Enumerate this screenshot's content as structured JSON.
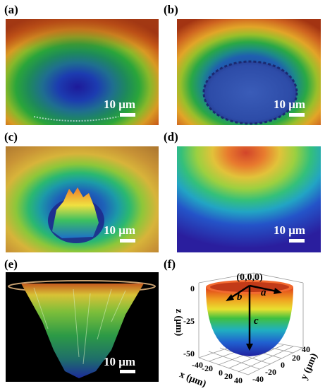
{
  "panels": [
    {
      "id": "a",
      "label": "(a)",
      "scale": "10 μm"
    },
    {
      "id": "b",
      "label": "(b)",
      "scale": "10 μm"
    },
    {
      "id": "c",
      "label": "(c)",
      "scale": "10 μm"
    },
    {
      "id": "d",
      "label": "(d)",
      "scale": "10 μm"
    },
    {
      "id": "e",
      "label": "(e)",
      "scale": "10 μm"
    },
    {
      "id": "f",
      "label": "(f)"
    }
  ],
  "plot3d": {
    "origin_label": "(0,0,0)",
    "var_a": "a",
    "var_b": "b",
    "var_c": "c",
    "z_axis_label": "z (μm)",
    "x_axis_label": "x (μm)",
    "y_axis_label": "y (μm)",
    "z_ticks": [
      "0",
      "-25",
      "-50"
    ],
    "x_ticks": [
      "-40",
      "-20",
      "0",
      "20",
      "40"
    ],
    "y_ticks": [
      "-40",
      "-20",
      "0",
      "20",
      "40"
    ]
  }
}
